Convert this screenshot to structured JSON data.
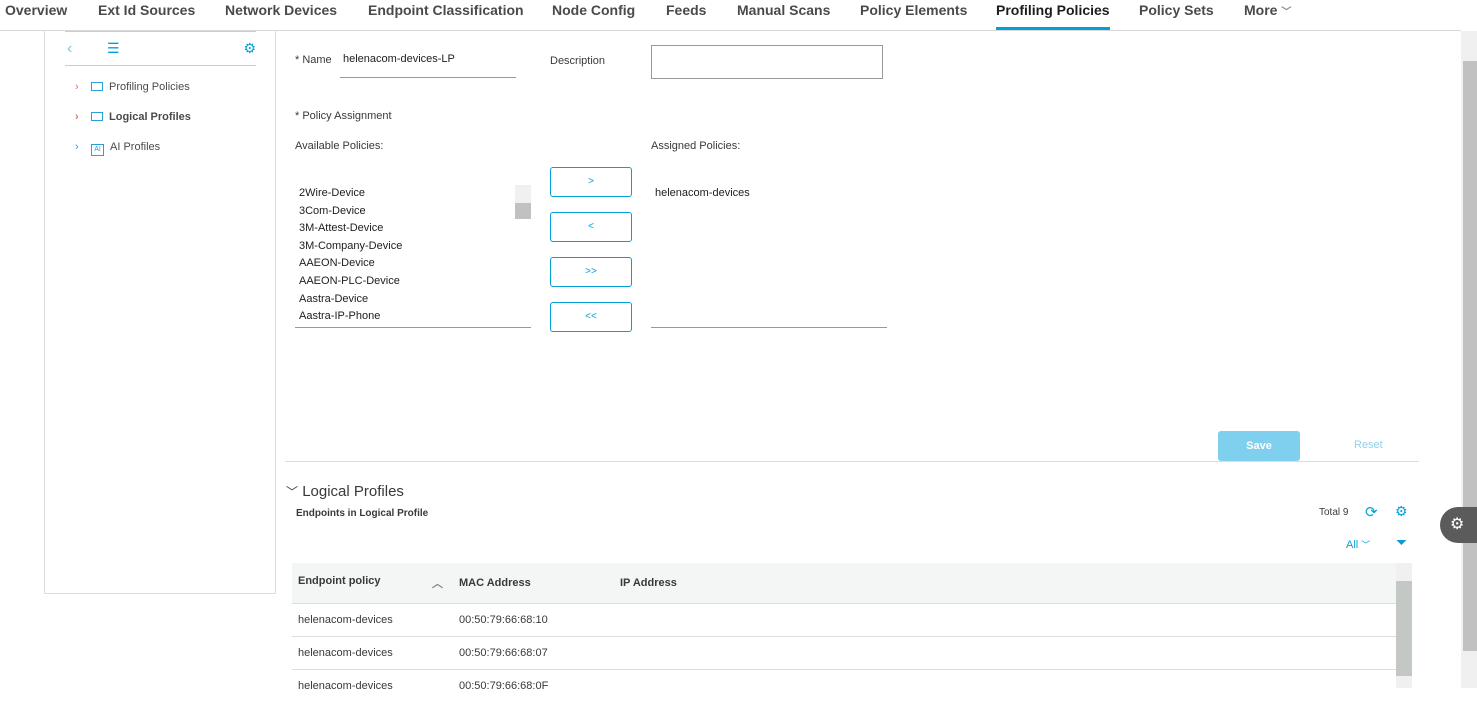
{
  "nav": {
    "tabs": [
      "Overview",
      "Ext Id Sources",
      "Network Devices",
      "Endpoint Classification",
      "Node Config",
      "Feeds",
      "Manual Scans",
      "Policy Elements",
      "Profiling Policies",
      "Policy Sets",
      "More"
    ],
    "active": "Profiling Policies"
  },
  "sidebar": {
    "items": [
      {
        "label": "Profiling Policies",
        "icon": "folder-icon"
      },
      {
        "label": "Logical Profiles",
        "icon": "folder-icon"
      },
      {
        "label": "AI Profiles",
        "icon": "ai-icon",
        "icon_text": "AI"
      }
    ]
  },
  "form": {
    "name_label": "* Name",
    "name_value": "helenacom-devices-LP",
    "description_label": "Description",
    "description_value": "",
    "assignment_label": "* Policy Assignment",
    "available_label": "Available Policies:",
    "assigned_label": "Assigned Policies:",
    "available": [
      "2Wire-Device",
      "3Com-Device",
      "3M-Attest-Device",
      "3M-Company-Device",
      "AAEON-Device",
      "AAEON-PLC-Device",
      "Aastra-Device",
      "Aastra-IP-Phone"
    ],
    "assigned": [
      "helenacom-devices"
    ],
    "buttons": {
      "add": ">",
      "remove": "<",
      "add_all": ">>",
      "remove_all": "<<"
    },
    "save": "Save",
    "reset": "Reset"
  },
  "section": {
    "title": "Logical Profiles",
    "subtitle": "Endpoints in Logical Profile",
    "total": "Total 9",
    "filter": "All",
    "columns": [
      "Endpoint policy",
      "MAC Address",
      "IP Address"
    ],
    "rows": [
      [
        "helenacom-devices",
        "00:50:79:66:68:10",
        ""
      ],
      [
        "helenacom-devices",
        "00:50:79:66:68:07",
        ""
      ],
      [
        "helenacom-devices",
        "00:50:79:66:68:0F",
        ""
      ]
    ]
  },
  "colors": {
    "accent": "#049fd9",
    "save_bg": "#7fcfee"
  }
}
